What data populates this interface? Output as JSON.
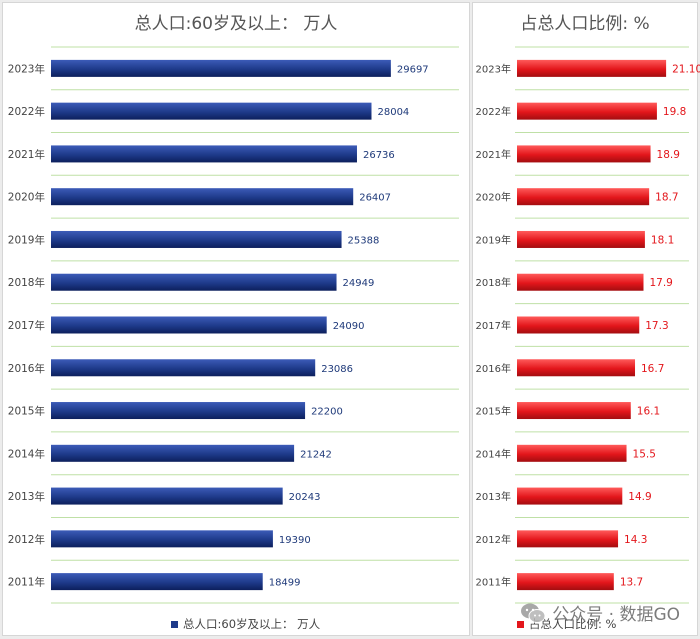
{
  "chart_data": [
    {
      "type": "bar",
      "orientation": "horizontal",
      "title": "总人口:60岁及以上： 万人",
      "categories": [
        "2023年",
        "2022年",
        "2021年",
        "2020年",
        "2019年",
        "2018年",
        "2017年",
        "2016年",
        "2015年",
        "2014年",
        "2013年",
        "2012年",
        "2011年"
      ],
      "series": [
        {
          "name": "总人口:60岁及以上： 万人",
          "values": [
            29697,
            28004,
            26736,
            26407,
            25388,
            24949,
            24090,
            23086,
            22200,
            21242,
            20243,
            19390,
            18499
          ],
          "labels": [
            "29697",
            "28004",
            "26736",
            "26407",
            "25388",
            "24949",
            "24090",
            "23086",
            "22200",
            "21242",
            "20243",
            "19390",
            "18499"
          ],
          "color": "#1e3a8a"
        }
      ],
      "xlim": [
        0,
        36000
      ],
      "grid": true,
      "legend": "bottom"
    },
    {
      "type": "bar",
      "orientation": "horizontal",
      "title": "占总人口比例: %",
      "categories": [
        "2023年",
        "2022年",
        "2021年",
        "2020年",
        "2019年",
        "2018年",
        "2017年",
        "2016年",
        "2015年",
        "2014年",
        "2013年",
        "2012年",
        "2011年"
      ],
      "series": [
        {
          "name": "占总人口比例: %",
          "values": [
            21.1,
            19.8,
            18.9,
            18.7,
            18.1,
            17.9,
            17.3,
            16.7,
            16.1,
            15.5,
            14.9,
            14.3,
            13.7
          ],
          "labels": [
            "21.10",
            "19.8",
            "18.9",
            "18.7",
            "18.1",
            "17.9",
            "17.3",
            "16.7",
            "16.1",
            "15.5",
            "14.9",
            "14.3",
            "13.7"
          ],
          "color": "#e3161b"
        }
      ],
      "xlim": [
        0,
        30
      ],
      "grid": true,
      "legend": "bottom"
    }
  ],
  "colors": {
    "grid": "#bfe0a6",
    "category_text": "#444444",
    "left_label_text": "#1f3a7a",
    "right_label_text": "#e3161b"
  },
  "watermark": {
    "text": "公众号 · 数据GO",
    "icon": "wechat-icon"
  }
}
